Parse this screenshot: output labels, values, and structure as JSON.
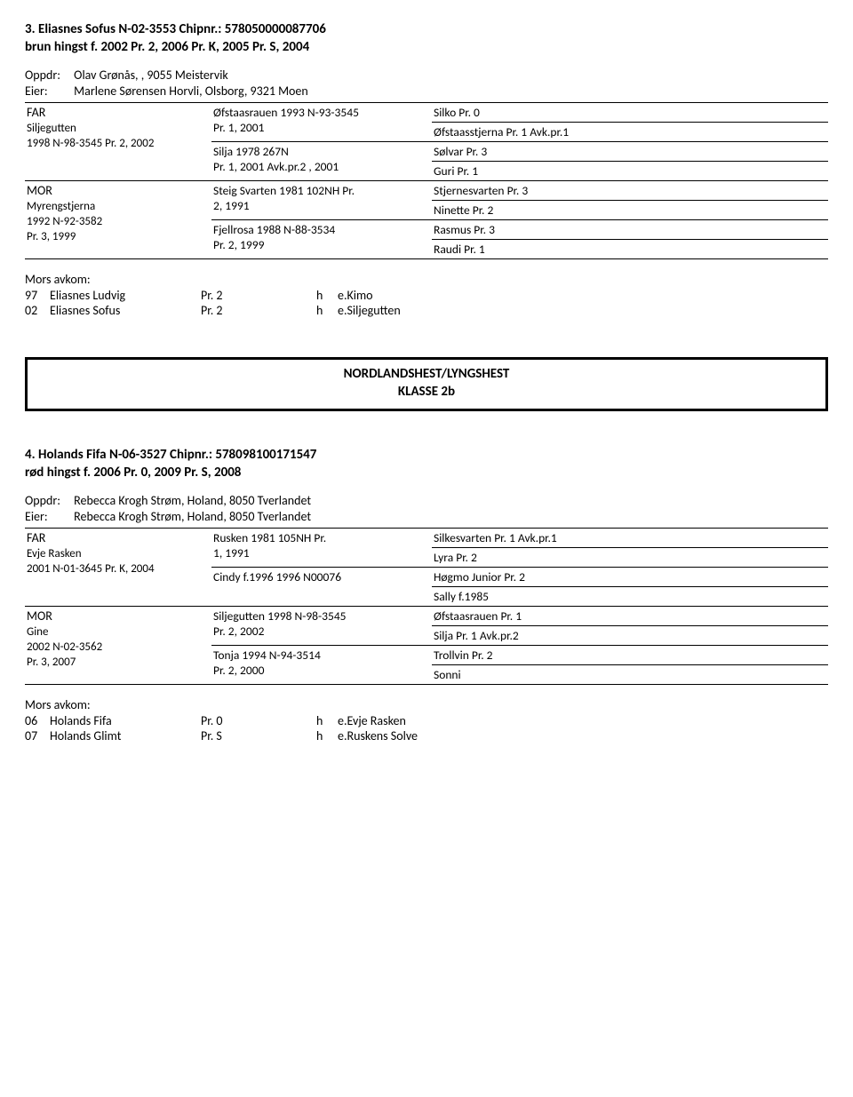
{
  "entry1": {
    "title_line1": "3. Eliasnes Sofus    N-02-3553 Chipnr.: 578050000087706",
    "title_line2": "brun hingst f. 2002    Pr. 2, 2006    Pr. K, 2005    Pr. S, 2004",
    "oppdr_label": "Oppdr:",
    "oppdr": "Olav Grønås, ,    9055 Meistervik",
    "eier_label": "Eier:",
    "eier": "Marlene Sørensen Horvli, Olsborg,    9321 Moen",
    "far_label": "FAR",
    "far_name": "Siljegutten",
    "far_reg": "1998 N-98-3545   Pr. 2, 2002",
    "mor_label": "MOR",
    "mor_name": "Myrengstjerna",
    "mor_reg": "1992 N-92-3582",
    "mor_pr": " Pr. 3, 1999",
    "ff_name": "Øfstaasrauen 1993 N-93-3545",
    "ff_pr": " Pr. 1, 2001",
    "fm_name": "Silja 1978 267N",
    "fm_pr": " Pr. 1, 2001 Avk.pr.2 , 2001",
    "mf_name": "Steig Svarten 1981 102NH Pr.",
    "mf_pr": " 2, 1991",
    "mm_name": "Fjellrosa 1988 N-88-3534",
    "mm_pr": " Pr. 2, 1999",
    "g1": "Silko    Pr. 0",
    "g2": "Øfstaasstjerna    Pr. 1 Avk.pr.1",
    "g3": "Sølvar    Pr. 3",
    "g4": "Guri    Pr. 1",
    "g5": "Stjernesvarten    Pr. 3",
    "g6": "Ninette    Pr. 2",
    "g7": "Rasmus    Pr. 3",
    "g8": "Raudi    Pr. 1",
    "avkom_title": "Mors avkom:",
    "avkom": [
      {
        "yr": "97",
        "name": "Eliasnes Ludvig",
        "pr": "Pr. 2",
        "sex": "h",
        "sire": "e.Kimo"
      },
      {
        "yr": "02",
        "name": "Eliasnes Sofus",
        "pr": "Pr. 2",
        "sex": "h",
        "sire": "e.Siljegutten"
      }
    ]
  },
  "banner": {
    "line1": "NORDLANDSHEST/LYNGSHEST",
    "line2": "KLASSE 2b"
  },
  "entry2": {
    "title_line1": "4. Holands Fifa    N-06-3527 Chipnr.: 578098100171547",
    "title_line2": "rød hingst f. 2006    Pr. 0, 2009    Pr. S, 2008",
    "oppdr_label": "Oppdr:",
    "oppdr": "Rebecca Krogh Strøm, Holand,    8050 Tverlandet",
    "eier_label": "Eier:",
    "eier": "Rebecca Krogh Strøm, Holand,    8050 Tverlandet",
    "far_label": "FAR",
    "far_name": "Evje Rasken",
    "far_reg": "2001 N-01-3645   Pr. K, 2004",
    "mor_label": "MOR",
    "mor_name": "Gine",
    "mor_reg": "2002 N-02-3562",
    "mor_pr": " Pr. 3, 2007",
    "ff_name": "Rusken 1981 105NH Pr.",
    "ff_pr": " 1, 1991",
    "fm_name": "Cindy f.1996 1996 N00076",
    "fm_pr": "",
    "mf_name": "Siljegutten 1998 N-98-3545",
    "mf_pr": " Pr. 2, 2002",
    "mm_name": "Tonja 1994 N-94-3514",
    "mm_pr": " Pr. 2, 2000",
    "g1": "Silkesvarten    Pr. 1 Avk.pr.1",
    "g2": "Lyra    Pr. 2",
    "g3": "Høgmo Junior    Pr. 2",
    "g4": "Sally f.1985",
    "g5": "Øfstaasrauen    Pr. 1",
    "g6": "Silja    Pr. 1 Avk.pr.2",
    "g7": "Trollvin    Pr. 2",
    "g8": "Sonni",
    "avkom_title": "Mors avkom:",
    "avkom": [
      {
        "yr": "06",
        "name": "Holands Fifa",
        "pr": "Pr. 0",
        "sex": "h",
        "sire": "e.Evje Rasken"
      },
      {
        "yr": "07",
        "name": "Holands Glimt",
        "pr": "Pr. S",
        "sex": "h",
        "sire": "e.Ruskens Solve"
      }
    ]
  }
}
